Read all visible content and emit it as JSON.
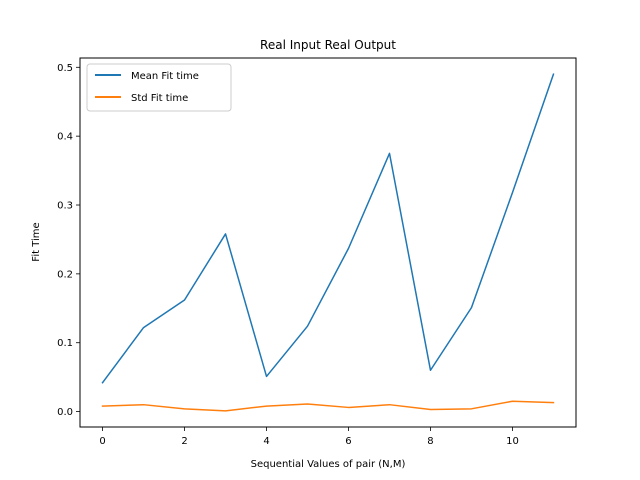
{
  "chart_data": {
    "type": "line",
    "title": "Real Input Real Output",
    "xlabel": "Sequential Values of pair (N,M)",
    "ylabel": "Fit Time",
    "x": [
      0,
      1,
      2,
      3,
      4,
      5,
      6,
      7,
      8,
      9,
      10,
      11
    ],
    "xlim": [
      -0.55,
      11.55
    ],
    "ylim": [
      -0.0224,
      0.5135
    ],
    "xticks": [
      0,
      2,
      4,
      6,
      8,
      10
    ],
    "xtick_labels": [
      "0",
      "2",
      "4",
      "6",
      "8",
      "10"
    ],
    "yticks": [
      0.0,
      0.1,
      0.2,
      0.3,
      0.4,
      0.5
    ],
    "ytick_labels": [
      "0.0",
      "0.1",
      "0.2",
      "0.3",
      "0.4",
      "0.5"
    ],
    "grid": false,
    "legend_position": "upper-left",
    "series": [
      {
        "name": "Mean Fit time",
        "color": "#1f77b4",
        "values": [
          0.042,
          0.122,
          0.162,
          0.258,
          0.051,
          0.124,
          0.237,
          0.375,
          0.06,
          0.151,
          0.318,
          0.49
        ]
      },
      {
        "name": "Std Fit time",
        "color": "#ff7f0e",
        "values": [
          0.008,
          0.01,
          0.004,
          0.001,
          0.008,
          0.011,
          0.006,
          0.01,
          0.003,
          0.004,
          0.015,
          0.013
        ]
      }
    ]
  }
}
